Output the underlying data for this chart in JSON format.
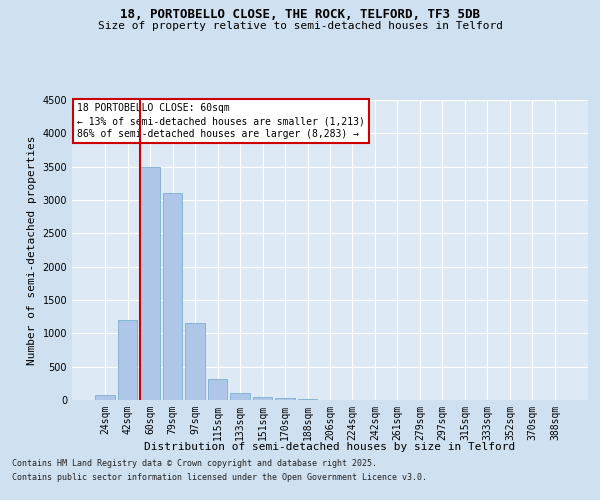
{
  "title1": "18, PORTOBELLO CLOSE, THE ROCK, TELFORD, TF3 5DB",
  "title2": "Size of property relative to semi-detached houses in Telford",
  "xlabel": "Distribution of semi-detached houses by size in Telford",
  "ylabel": "Number of semi-detached properties",
  "categories": [
    "24sqm",
    "42sqm",
    "60sqm",
    "79sqm",
    "97sqm",
    "115sqm",
    "133sqm",
    "151sqm",
    "170sqm",
    "188sqm",
    "206sqm",
    "224sqm",
    "242sqm",
    "261sqm",
    "279sqm",
    "297sqm",
    "315sqm",
    "333sqm",
    "352sqm",
    "370sqm",
    "388sqm"
  ],
  "values": [
    80,
    1200,
    3500,
    3100,
    1150,
    310,
    110,
    50,
    30,
    10,
    5,
    2,
    1,
    0,
    0,
    0,
    0,
    0,
    0,
    0,
    0
  ],
  "bar_color": "#aec6e8",
  "bar_edge_color": "#7bafd4",
  "vline_color": "#cc0000",
  "vline_index": 2,
  "annotation_title": "18 PORTOBELLO CLOSE: 60sqm",
  "annotation_line1": "← 13% of semi-detached houses are smaller (1,213)",
  "annotation_line2": "86% of semi-detached houses are larger (8,283) →",
  "annotation_box_color": "#cc0000",
  "ylim": [
    0,
    4500
  ],
  "yticks": [
    0,
    500,
    1000,
    1500,
    2000,
    2500,
    3000,
    3500,
    4000,
    4500
  ],
  "footer1": "Contains HM Land Registry data © Crown copyright and database right 2025.",
  "footer2": "Contains public sector information licensed under the Open Government Licence v3.0.",
  "bg_color": "#cfe0f0",
  "plot_bg_color": "#ddeaf5",
  "grid_color": "#ffffff",
  "title_fontsize": 9,
  "subtitle_fontsize": 8,
  "tick_fontsize": 7,
  "ylabel_fontsize": 8,
  "xlabel_fontsize": 8,
  "footer_fontsize": 6,
  "annot_fontsize": 7
}
